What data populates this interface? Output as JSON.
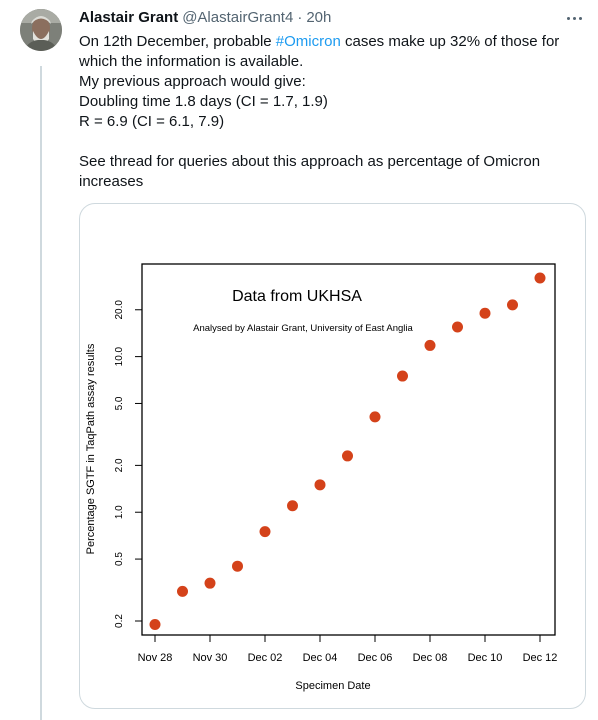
{
  "tweet": {
    "author_name": "Alastair Grant",
    "author_handle": "@AlastairGrant4",
    "separator": "·",
    "time": "20h",
    "text": {
      "line1_pre": "On 12th December, probable ",
      "hashtag": "#Omicron",
      "line1_post": " cases make up 32% of those for",
      "line2": "which the information is available.",
      "line3": "My previous approach would give:",
      "line4": "Doubling time 1.8 days (CI = 1.7, 1.9)",
      "line5": "R = 6.9 (CI = 6.1, 7.9)",
      "line7": "See thread for queries about this approach as percentage of Omicron",
      "line8": "increases"
    }
  },
  "colors": {
    "point": "#d4421a",
    "link": "#1d9bf0",
    "secondary_text": "#536471"
  },
  "icons": {
    "more": "more-horizontal-icon",
    "avatar": "avatar"
  },
  "chart_data": {
    "type": "scatter",
    "title": "Data from UKHSA",
    "subtitle": "Analysed by Alastair Grant, University of East Anglia",
    "xlabel": "Specimen Date",
    "ylabel": "Percentage SGTF in TaqPath assay results",
    "y_scale": "log",
    "ylim": [
      0.17,
      42
    ],
    "xlim": [
      "2021-11-27",
      "2021-12-12"
    ],
    "grid": false,
    "x_ticks": [
      "Nov 28",
      "Nov 30",
      "Dec 02",
      "Dec 04",
      "Dec 06",
      "Dec 08",
      "Dec 10",
      "Dec 12"
    ],
    "y_ticks": [
      "0.2",
      "0.5",
      "1.0",
      "2.0",
      "5.0",
      "10.0",
      "20.0"
    ],
    "x_tick_values": [
      0,
      2,
      4,
      6,
      8,
      10,
      12,
      14
    ],
    "y_tick_values": [
      0.2,
      0.5,
      1.0,
      2.0,
      5.0,
      10.0,
      20.0
    ],
    "dates": [
      "Nov 28",
      "Nov 29",
      "Nov 30",
      "Dec 01",
      "Dec 02",
      "Dec 03",
      "Dec 04",
      "Dec 05",
      "Dec 06",
      "Dec 07",
      "Dec 08",
      "Dec 09",
      "Dec 10",
      "Dec 11",
      "Dec 12"
    ],
    "x": [
      0,
      1,
      2,
      3,
      4,
      5,
      6,
      7,
      8,
      9,
      10,
      11,
      12,
      13,
      14
    ],
    "y": [
      0.19,
      0.31,
      0.35,
      0.45,
      0.75,
      1.1,
      1.5,
      2.3,
      4.1,
      7.5,
      11.8,
      15.5,
      19.0,
      21.5,
      32.0
    ]
  }
}
